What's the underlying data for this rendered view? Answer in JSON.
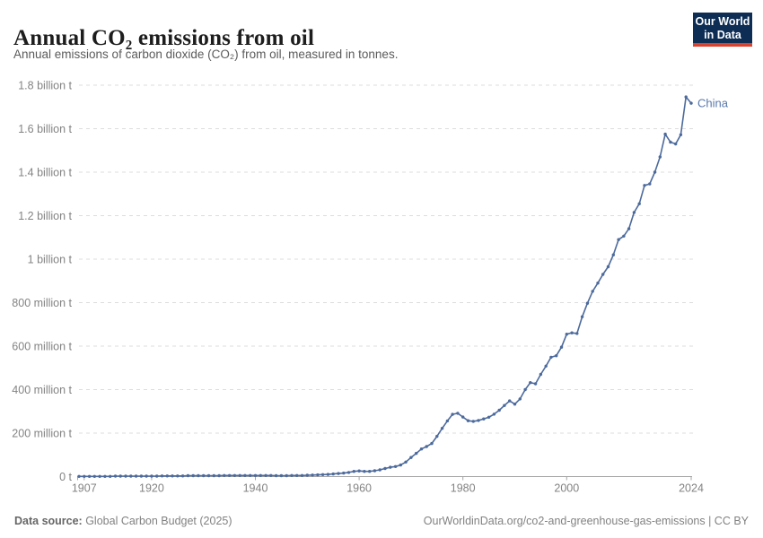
{
  "header": {
    "title": "Annual CO₂ emissions from oil",
    "subtitle": "Annual emissions of carbon dioxide (CO₂) from oil, measured in tonnes.",
    "logo_line1": "Our World",
    "logo_line2": "in Data"
  },
  "chart_data": {
    "type": "line",
    "title": "Annual CO₂ emissions from oil",
    "xlabel": "",
    "ylabel": "",
    "unit": "tonnes CO₂ (values in millions)",
    "grid": "horizontal-dashed",
    "legend_position": "end-of-line-label",
    "xlim": [
      1906,
      2024
    ],
    "ylim": [
      0,
      1800
    ],
    "x_tick_labels": [
      1907,
      1920,
      1940,
      1960,
      1980,
      2000,
      2024
    ],
    "y_ticks": [
      {
        "value": 0,
        "label": "0 t"
      },
      {
        "value": 200,
        "label": "200 million t"
      },
      {
        "value": 400,
        "label": "400 million t"
      },
      {
        "value": 600,
        "label": "600 million t"
      },
      {
        "value": 800,
        "label": "800 million t"
      },
      {
        "value": 1000,
        "label": "1 billion t"
      },
      {
        "value": 1200,
        "label": "1.2 billion t"
      },
      {
        "value": 1400,
        "label": "1.4 billion t"
      },
      {
        "value": 1600,
        "label": "1.6 billion t"
      },
      {
        "value": 1800,
        "label": "1.8 billion t"
      }
    ],
    "series": [
      {
        "name": "China",
        "x": [
          1906,
          1907,
          1908,
          1909,
          1910,
          1911,
          1912,
          1913,
          1914,
          1915,
          1916,
          1917,
          1918,
          1919,
          1920,
          1921,
          1922,
          1923,
          1924,
          1925,
          1926,
          1927,
          1928,
          1929,
          1930,
          1931,
          1932,
          1933,
          1934,
          1935,
          1936,
          1937,
          1938,
          1939,
          1940,
          1941,
          1942,
          1943,
          1944,
          1945,
          1946,
          1947,
          1948,
          1949,
          1950,
          1951,
          1952,
          1953,
          1954,
          1955,
          1956,
          1957,
          1958,
          1959,
          1960,
          1961,
          1962,
          1963,
          1964,
          1965,
          1966,
          1967,
          1968,
          1969,
          1970,
          1971,
          1972,
          1973,
          1974,
          1975,
          1976,
          1977,
          1978,
          1979,
          1980,
          1981,
          1982,
          1983,
          1984,
          1985,
          1986,
          1987,
          1988,
          1989,
          1990,
          1991,
          1992,
          1993,
          1994,
          1995,
          1996,
          1997,
          1998,
          1999,
          2000,
          2001,
          2002,
          2003,
          2004,
          2005,
          2006,
          2007,
          2008,
          2009,
          2010,
          2011,
          2012,
          2013,
          2014,
          2015,
          2016,
          2017,
          2018,
          2019,
          2020,
          2021,
          2022,
          2023,
          2024
        ],
        "values": [
          1,
          1,
          1,
          1,
          1,
          1,
          1,
          2,
          2,
          2,
          2,
          2,
          2,
          2,
          2,
          2,
          3,
          3,
          3,
          3,
          3,
          4,
          4,
          4,
          4,
          4,
          4,
          4,
          5,
          5,
          5,
          5,
          5,
          5,
          5,
          5,
          5,
          5,
          4,
          4,
          4,
          5,
          5,
          5,
          6,
          7,
          8,
          9,
          10,
          12,
          14,
          16,
          19,
          24,
          26,
          24,
          24,
          27,
          31,
          37,
          43,
          46,
          53,
          67,
          88,
          107,
          127,
          138,
          152,
          185,
          222,
          256,
          286,
          291,
          274,
          257,
          254,
          258,
          265,
          273,
          287,
          305,
          327,
          348,
          333,
          357,
          400,
          432,
          427,
          470,
          508,
          549,
          556,
          595,
          655,
          661,
          658,
          735,
          797,
          852,
          890,
          930,
          965,
          1020,
          1090,
          1106,
          1140,
          1215,
          1255,
          1339,
          1346,
          1400,
          1470,
          1575,
          1538,
          1530,
          1572,
          1746,
          1717
        ]
      }
    ],
    "end_label": "China"
  },
  "footer": {
    "source_label": "Data source:",
    "source_text": " Global Carbon Budget (2025)",
    "link_text": "OurWorldinData.org/co2-and-greenhouse-gas-emissions | CC BY"
  },
  "colors": {
    "line": "#4c6a9c",
    "entity_label": "#5878ac",
    "grid": "#dddddd",
    "axis": "#a5a5a5",
    "tick_label": "#838383",
    "logo_bg": "#0d2d54",
    "logo_bar": "#d8432f"
  }
}
